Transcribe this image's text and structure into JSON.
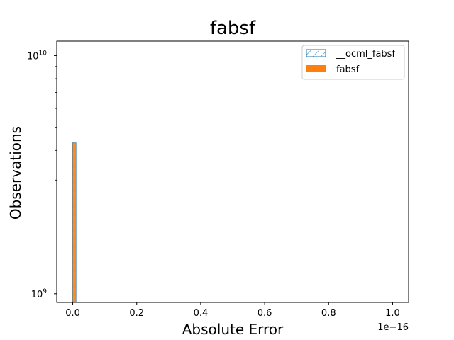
{
  "chart_data": {
    "type": "bar",
    "title": "fabsf",
    "xlabel": "Absolute Error",
    "ylabel": "Observations",
    "x_offset_label": "1e−16",
    "xlim": [
      -0.05,
      1.05
    ],
    "ylim": [
      920000000,
      11500000000
    ],
    "yscale": "log",
    "xticks": [
      0.0,
      0.2,
      0.4,
      0.6,
      0.8,
      1.0
    ],
    "xtick_labels": [
      "0.0",
      "0.2",
      "0.4",
      "0.6",
      "0.8",
      "1.0"
    ],
    "ytick_major": [
      {
        "value": 1000000000,
        "base": "10",
        "exp": "9"
      },
      {
        "value": 10000000000,
        "base": "10",
        "exp": "10"
      }
    ],
    "grid": false,
    "legend_position": "top-right",
    "series": [
      {
        "name": "__ocml_fabsf",
        "style": "hatched-outline",
        "color": "#1f77b4",
        "bins": [
          {
            "x0": 0.0,
            "x1": 0.01,
            "value": 4300000000
          }
        ]
      },
      {
        "name": "fabsf",
        "style": "filled",
        "color": "#ff7f0e",
        "bins": [
          {
            "x0": 0.0,
            "x1": 0.01,
            "value": 4300000000
          }
        ]
      }
    ]
  }
}
